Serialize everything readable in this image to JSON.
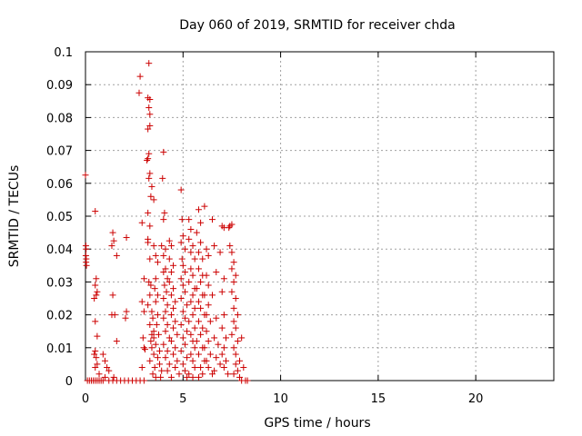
{
  "chart_data": {
    "type": "scatter",
    "title": "Day 060 of 2019, SRMTID for receiver chda",
    "xlabel": "GPS time / hours",
    "ylabel": "SRMTID / TECUs",
    "xlim": [
      0,
      24
    ],
    "ylim": [
      0,
      0.1
    ],
    "xticks": [
      0,
      5,
      10,
      15,
      20
    ],
    "xtick_labels": [
      "0",
      "5",
      "10",
      "15",
      "20"
    ],
    "yticks": [
      0,
      0.01,
      0.02,
      0.03,
      0.04,
      0.05,
      0.06,
      0.07,
      0.08,
      0.09,
      0.1
    ],
    "ytick_labels": [
      "0",
      "0.01",
      "0.02",
      "0.03",
      "0.04",
      "0.05",
      "0.06",
      "0.07",
      "0.08",
      "0.09",
      "0.1"
    ],
    "grid": true,
    "marker": "+",
    "color": "#cc0000",
    "points": [
      [
        0.0,
        0.0625
      ],
      [
        0.02,
        0.041
      ],
      [
        0.03,
        0.04
      ],
      [
        0.02,
        0.038
      ],
      [
        0.04,
        0.037
      ],
      [
        0.03,
        0.036
      ],
      [
        0.05,
        0.035
      ],
      [
        0.1,
        0.0
      ],
      [
        0.2,
        0.0
      ],
      [
        0.3,
        0.0
      ],
      [
        0.4,
        0.0
      ],
      [
        0.5,
        0.0
      ],
      [
        0.6,
        0.0
      ],
      [
        0.7,
        0.0
      ],
      [
        0.8,
        0.0
      ],
      [
        0.9,
        0.0
      ],
      [
        0.5,
        0.0515
      ],
      [
        0.55,
        0.031
      ],
      [
        0.5,
        0.029
      ],
      [
        0.6,
        0.027
      ],
      [
        0.55,
        0.026
      ],
      [
        0.45,
        0.025
      ],
      [
        0.5,
        0.018
      ],
      [
        0.6,
        0.0135
      ],
      [
        0.5,
        0.009
      ],
      [
        0.45,
        0.008
      ],
      [
        0.55,
        0.007
      ],
      [
        0.6,
        0.005
      ],
      [
        0.5,
        0.004
      ],
      [
        0.7,
        0.002
      ],
      [
        0.9,
        0.008
      ],
      [
        1.0,
        0.006
      ],
      [
        1.1,
        0.004
      ],
      [
        1.2,
        0.003
      ],
      [
        1.0,
        0.001
      ],
      [
        1.2,
        0.0
      ],
      [
        1.4,
        0.0
      ],
      [
        1.6,
        0.0
      ],
      [
        1.8,
        0.0
      ],
      [
        2.0,
        0.0
      ],
      [
        2.2,
        0.0
      ],
      [
        2.4,
        0.0
      ],
      [
        2.6,
        0.0
      ],
      [
        2.8,
        0.0
      ],
      [
        3.0,
        0.0
      ],
      [
        1.4,
        0.045
      ],
      [
        1.45,
        0.0425
      ],
      [
        1.35,
        0.041
      ],
      [
        1.6,
        0.038
      ],
      [
        1.4,
        0.026
      ],
      [
        1.35,
        0.02
      ],
      [
        1.5,
        0.02
      ],
      [
        1.6,
        0.012
      ],
      [
        1.45,
        0.001
      ],
      [
        2.1,
        0.0435
      ],
      [
        2.1,
        0.021
      ],
      [
        2.05,
        0.019
      ],
      [
        2.8,
        0.0925
      ],
      [
        2.75,
        0.0875
      ],
      [
        2.9,
        0.048
      ],
      [
        3.0,
        0.031
      ],
      [
        2.9,
        0.024
      ],
      [
        3.0,
        0.021
      ],
      [
        2.95,
        0.013
      ],
      [
        3.0,
        0.01
      ],
      [
        3.05,
        0.0095
      ],
      [
        2.9,
        0.004
      ],
      [
        3.25,
        0.0965
      ],
      [
        3.2,
        0.086
      ],
      [
        3.3,
        0.0855
      ],
      [
        3.25,
        0.083
      ],
      [
        3.3,
        0.081
      ],
      [
        3.2,
        0.0765
      ],
      [
        3.3,
        0.0775
      ],
      [
        3.25,
        0.069
      ],
      [
        3.2,
        0.0675
      ],
      [
        3.15,
        0.067
      ],
      [
        3.3,
        0.063
      ],
      [
        3.25,
        0.0615
      ],
      [
        3.4,
        0.059
      ],
      [
        3.35,
        0.056
      ],
      [
        3.5,
        0.055
      ],
      [
        3.2,
        0.051
      ],
      [
        3.3,
        0.047
      ],
      [
        3.2,
        0.043
      ],
      [
        3.2,
        0.042
      ],
      [
        3.3,
        0.037
      ],
      [
        3.25,
        0.03
      ],
      [
        3.35,
        0.029
      ],
      [
        3.3,
        0.026
      ],
      [
        3.2,
        0.023
      ],
      [
        3.4,
        0.021
      ],
      [
        3.45,
        0.019
      ],
      [
        3.3,
        0.017
      ],
      [
        3.5,
        0.015
      ],
      [
        3.4,
        0.014
      ],
      [
        3.5,
        0.013
      ],
      [
        3.35,
        0.012
      ],
      [
        3.4,
        0.01
      ],
      [
        3.5,
        0.008
      ],
      [
        3.3,
        0.006
      ],
      [
        3.55,
        0.004
      ],
      [
        3.45,
        0.002
      ],
      [
        3.6,
        0.001
      ],
      [
        3.5,
        0.041
      ],
      [
        3.6,
        0.038
      ],
      [
        3.7,
        0.036
      ],
      [
        3.6,
        0.031
      ],
      [
        3.55,
        0.028
      ],
      [
        3.7,
        0.026
      ],
      [
        3.6,
        0.024
      ],
      [
        3.7,
        0.02
      ],
      [
        3.65,
        0.017
      ],
      [
        3.75,
        0.014
      ],
      [
        3.6,
        0.011
      ],
      [
        3.8,
        0.009
      ],
      [
        3.7,
        0.007
      ],
      [
        3.8,
        0.005
      ],
      [
        3.9,
        0.003
      ],
      [
        3.85,
        0.001
      ],
      [
        4.0,
        0.0695
      ],
      [
        3.95,
        0.0615
      ],
      [
        4.05,
        0.051
      ],
      [
        4.0,
        0.049
      ],
      [
        3.9,
        0.041
      ],
      [
        4.1,
        0.04
      ],
      [
        4.0,
        0.038
      ],
      [
        4.1,
        0.034
      ],
      [
        4.0,
        0.033
      ],
      [
        4.2,
        0.031
      ],
      [
        4.05,
        0.029
      ],
      [
        4.15,
        0.027
      ],
      [
        4.0,
        0.025
      ],
      [
        4.2,
        0.023
      ],
      [
        4.1,
        0.021
      ],
      [
        4.0,
        0.019
      ],
      [
        4.2,
        0.017
      ],
      [
        4.1,
        0.015
      ],
      [
        4.3,
        0.013
      ],
      [
        4.0,
        0.011
      ],
      [
        4.2,
        0.009
      ],
      [
        4.1,
        0.007
      ],
      [
        4.3,
        0.005
      ],
      [
        4.2,
        0.003
      ],
      [
        4.4,
        0.001
      ],
      [
        4.3,
        0.0425
      ],
      [
        4.4,
        0.041
      ],
      [
        4.3,
        0.037
      ],
      [
        4.5,
        0.035
      ],
      [
        4.4,
        0.033
      ],
      [
        4.3,
        0.03
      ],
      [
        4.5,
        0.028
      ],
      [
        4.4,
        0.026
      ],
      [
        4.6,
        0.024
      ],
      [
        4.5,
        0.022
      ],
      [
        4.4,
        0.02
      ],
      [
        4.6,
        0.018
      ],
      [
        4.5,
        0.016
      ],
      [
        4.7,
        0.014
      ],
      [
        4.4,
        0.012
      ],
      [
        4.6,
        0.01
      ],
      [
        4.5,
        0.008
      ],
      [
        4.7,
        0.006
      ],
      [
        4.6,
        0.004
      ],
      [
        4.8,
        0.002
      ],
      [
        4.9,
        0.058
      ],
      [
        4.95,
        0.049
      ],
      [
        5.0,
        0.044
      ],
      [
        4.9,
        0.042
      ],
      [
        5.1,
        0.04
      ],
      [
        4.95,
        0.037
      ],
      [
        5.0,
        0.035
      ],
      [
        5.1,
        0.033
      ],
      [
        4.9,
        0.031
      ],
      [
        5.0,
        0.029
      ],
      [
        5.1,
        0.027
      ],
      [
        4.9,
        0.025
      ],
      [
        5.2,
        0.023
      ],
      [
        5.0,
        0.021
      ],
      [
        5.1,
        0.019
      ],
      [
        4.9,
        0.017
      ],
      [
        5.2,
        0.015
      ],
      [
        5.0,
        0.013
      ],
      [
        5.1,
        0.011
      ],
      [
        4.9,
        0.009
      ],
      [
        5.2,
        0.007
      ],
      [
        5.0,
        0.005
      ],
      [
        5.1,
        0.003
      ],
      [
        5.2,
        0.001
      ],
      [
        5.3,
        0.049
      ],
      [
        5.4,
        0.046
      ],
      [
        5.3,
        0.043
      ],
      [
        5.5,
        0.041
      ],
      [
        5.4,
        0.039
      ],
      [
        5.6,
        0.037
      ],
      [
        5.4,
        0.034
      ],
      [
        5.5,
        0.032
      ],
      [
        5.3,
        0.03
      ],
      [
        5.6,
        0.028
      ],
      [
        5.5,
        0.026
      ],
      [
        5.4,
        0.024
      ],
      [
        5.6,
        0.022
      ],
      [
        5.5,
        0.02
      ],
      [
        5.3,
        0.018
      ],
      [
        5.6,
        0.016
      ],
      [
        5.4,
        0.014
      ],
      [
        5.5,
        0.012
      ],
      [
        5.6,
        0.01
      ],
      [
        5.4,
        0.008
      ],
      [
        5.5,
        0.006
      ],
      [
        5.6,
        0.004
      ],
      [
        5.3,
        0.002
      ],
      [
        5.5,
        0.001
      ],
      [
        5.8,
        0.052
      ],
      [
        5.9,
        0.048
      ],
      [
        5.7,
        0.045
      ],
      [
        5.9,
        0.042
      ],
      [
        5.8,
        0.039
      ],
      [
        6.0,
        0.037
      ],
      [
        5.8,
        0.034
      ],
      [
        6.0,
        0.032
      ],
      [
        5.9,
        0.03
      ],
      [
        5.7,
        0.028
      ],
      [
        6.0,
        0.026
      ],
      [
        5.8,
        0.024
      ],
      [
        5.9,
        0.022
      ],
      [
        6.1,
        0.02
      ],
      [
        5.8,
        0.018
      ],
      [
        6.0,
        0.016
      ],
      [
        5.9,
        0.014
      ],
      [
        5.7,
        0.012
      ],
      [
        6.0,
        0.01
      ],
      [
        5.8,
        0.008
      ],
      [
        6.1,
        0.006
      ],
      [
        5.9,
        0.004
      ],
      [
        6.0,
        0.002
      ],
      [
        5.8,
        0.001
      ],
      [
        6.1,
        0.053
      ],
      [
        6.2,
        0.04
      ],
      [
        6.3,
        0.038
      ],
      [
        6.2,
        0.032
      ],
      [
        6.3,
        0.029
      ],
      [
        6.1,
        0.026
      ],
      [
        6.3,
        0.023
      ],
      [
        6.2,
        0.02
      ],
      [
        6.4,
        0.018
      ],
      [
        6.2,
        0.015
      ],
      [
        6.3,
        0.012
      ],
      [
        6.1,
        0.01
      ],
      [
        6.4,
        0.008
      ],
      [
        6.2,
        0.006
      ],
      [
        6.3,
        0.004
      ],
      [
        6.5,
        0.002
      ],
      [
        6.5,
        0.049
      ],
      [
        6.6,
        0.041
      ],
      [
        6.7,
        0.033
      ],
      [
        6.5,
        0.026
      ],
      [
        6.7,
        0.019
      ],
      [
        6.6,
        0.013
      ],
      [
        6.8,
        0.011
      ],
      [
        6.7,
        0.007
      ],
      [
        6.9,
        0.005
      ],
      [
        6.6,
        0.003
      ],
      [
        7.0,
        0.047
      ],
      [
        7.1,
        0.0465
      ],
      [
        6.9,
        0.039
      ],
      [
        7.1,
        0.031
      ],
      [
        7.0,
        0.027
      ],
      [
        7.1,
        0.02
      ],
      [
        7.0,
        0.016
      ],
      [
        7.2,
        0.013
      ],
      [
        7.1,
        0.01
      ],
      [
        7.0,
        0.008
      ],
      [
        7.2,
        0.006
      ],
      [
        7.1,
        0.004
      ],
      [
        7.3,
        0.002
      ],
      [
        7.35,
        0.0465
      ],
      [
        7.4,
        0.047
      ],
      [
        7.5,
        0.0475
      ],
      [
        7.4,
        0.041
      ],
      [
        7.5,
        0.039
      ],
      [
        7.6,
        0.036
      ],
      [
        7.5,
        0.034
      ],
      [
        7.7,
        0.032
      ],
      [
        7.6,
        0.03
      ],
      [
        7.5,
        0.027
      ],
      [
        7.7,
        0.025
      ],
      [
        7.6,
        0.022
      ],
      [
        7.8,
        0.02
      ],
      [
        7.6,
        0.018
      ],
      [
        7.7,
        0.016
      ],
      [
        7.5,
        0.014
      ],
      [
        7.8,
        0.012
      ],
      [
        7.6,
        0.01
      ],
      [
        7.7,
        0.008
      ],
      [
        7.9,
        0.006
      ],
      [
        7.7,
        0.005
      ],
      [
        7.8,
        0.003
      ],
      [
        7.6,
        0.002
      ],
      [
        7.9,
        0.001
      ],
      [
        8.0,
        0.013
      ],
      [
        8.1,
        0.004
      ],
      [
        8.0,
        0.0
      ],
      [
        8.2,
        0.0
      ],
      [
        8.3,
        0.0
      ]
    ]
  }
}
